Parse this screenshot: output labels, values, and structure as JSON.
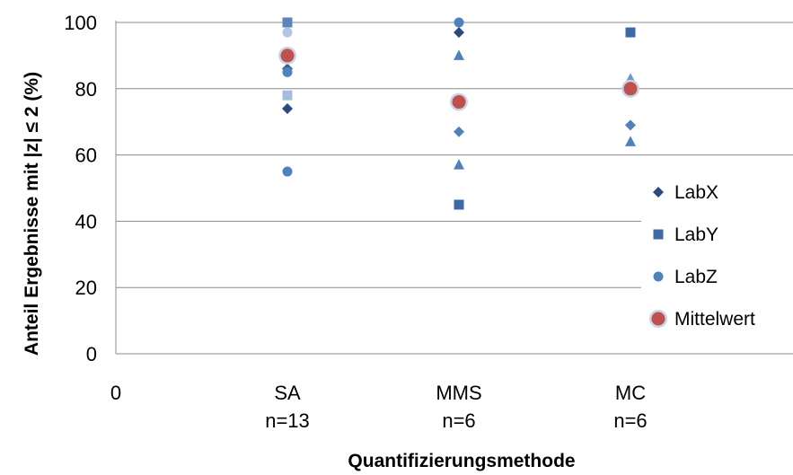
{
  "chart_data": {
    "type": "scatter",
    "xlabel": "Quantifizierungsmethode",
    "ylabel": "Anteil Ergebnisse mit  |z| ≤ 2 (%)",
    "ylim": [
      0,
      100
    ],
    "xlim": [
      0,
      4
    ],
    "y_ticks": [
      "0",
      "20",
      "40",
      "60",
      "80",
      "100"
    ],
    "x_origin_label": "0",
    "categories": [
      {
        "x": 1,
        "label": "SA",
        "n": "n=13"
      },
      {
        "x": 2,
        "label": "MMS",
        "n": "n=6"
      },
      {
        "x": 3,
        "label": "MC",
        "n": "n=6"
      }
    ],
    "grid": "horizontal",
    "legend_position": "right",
    "series": [
      {
        "name": "LabX",
        "marker": "diamond",
        "color": "#3F5B8F",
        "points": [
          {
            "x": 1,
            "y": 100,
            "color": "#A9BCDD"
          },
          {
            "x": 1,
            "y": 86,
            "color": "#3F5B8F"
          },
          {
            "x": 1,
            "y": 74,
            "color": "#2C4A80"
          },
          {
            "x": 2,
            "y": 97,
            "color": "#2C4A80"
          },
          {
            "x": 2,
            "y": 67,
            "color": "#4F81BD"
          },
          {
            "x": 3,
            "y": 69,
            "color": "#4F81BD"
          }
        ]
      },
      {
        "name": "LabY",
        "marker": "square",
        "color": "#3D6AA6",
        "points": [
          {
            "x": 1,
            "y": 100,
            "color": "#5D85BC"
          },
          {
            "x": 1,
            "y": 78,
            "color": "#A9BCDD"
          },
          {
            "x": 2,
            "y": 45,
            "color": "#3D6AA6"
          },
          {
            "x": 3,
            "y": 97,
            "color": "#3D6AA6"
          }
        ]
      },
      {
        "name": "",
        "marker": "triangle",
        "color": "#4F81BD",
        "points": [
          {
            "x": 2,
            "y": 90,
            "color": "#4F81BD"
          },
          {
            "x": 2,
            "y": 57,
            "color": "#4F81BD"
          },
          {
            "x": 3,
            "y": 83,
            "color": "#6F97CB"
          },
          {
            "x": 3,
            "y": 64,
            "color": "#4F81BD"
          }
        ]
      },
      {
        "name": "LabZ",
        "marker": "circle",
        "color": "#4F81BD",
        "points": [
          {
            "x": 1,
            "y": 97,
            "color": "#B4C6E7"
          },
          {
            "x": 1,
            "y": 85,
            "color": "#4F81BD"
          },
          {
            "x": 1,
            "y": 55,
            "color": "#4F81BD"
          },
          {
            "x": 2,
            "y": 100,
            "color": "#4F81BD"
          }
        ]
      },
      {
        "name": "Mittelwert",
        "marker": "circle-large",
        "color": "#C0504D",
        "points": [
          {
            "x": 1,
            "y": 90,
            "color": "#C0504D"
          },
          {
            "x": 2,
            "y": 76,
            "color": "#C0504D"
          },
          {
            "x": 3,
            "y": 80,
            "color": "#C0504D"
          }
        ]
      }
    ],
    "legend": [
      {
        "label": "LabX",
        "marker": "diamond",
        "color": "#2C4A80"
      },
      {
        "label": "LabY",
        "marker": "square",
        "color": "#3D6AA6"
      },
      {
        "label": "LabZ",
        "marker": "circle",
        "color": "#4F81BD"
      },
      {
        "label": "Mittelwert",
        "marker": "circle-large",
        "color": "#C0504D"
      }
    ],
    "colors": {
      "grid": "#8C8C8C",
      "axis": "#8C8C8C",
      "halo": "#C9D3E6"
    }
  }
}
